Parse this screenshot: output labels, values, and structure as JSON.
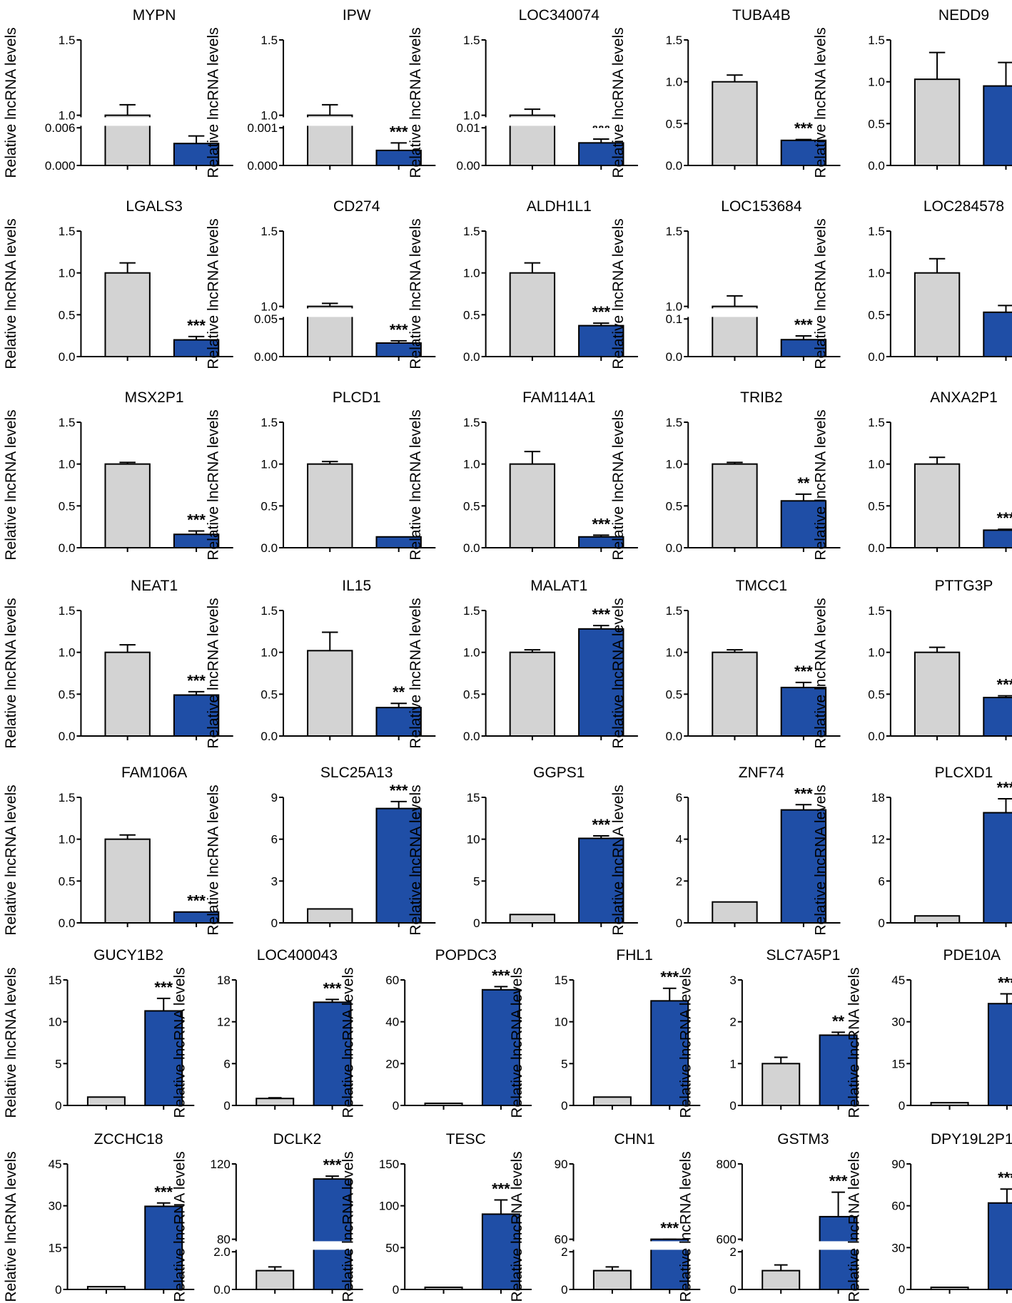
{
  "figure": {
    "ylabel": "Relative lncRNA levels",
    "colors": {
      "control": "#d3d3d3",
      "treated": "#1f4ea6"
    },
    "panels_per_row": [
      5,
      5,
      5,
      5,
      5,
      6,
      6
    ]
  },
  "chart_data": [
    {
      "type": "bar",
      "title": "MYPN",
      "ylabel": "Relative lncRNA levels",
      "ylim": [
        0,
        1.5
      ],
      "yticks": [
        "0.000",
        "0.006",
        "1.0",
        "1.5"
      ],
      "axis_break": true,
      "values": [
        1.0,
        0.0035
      ],
      "errors": [
        0.07,
        0.0012
      ],
      "significance": [
        "",
        "***"
      ]
    },
    {
      "type": "bar",
      "title": "IPW",
      "ylabel": "Relative lncRNA levels",
      "ylim": [
        0,
        1.5
      ],
      "yticks": [
        "0.000",
        "0.001",
        "1.0",
        "1.5"
      ],
      "axis_break": true,
      "values": [
        1.0,
        0.0004
      ],
      "errors": [
        0.07,
        0.0002
      ],
      "significance": [
        "",
        "***"
      ]
    },
    {
      "type": "bar",
      "title": "LOC340074",
      "ylabel": "Relative lncRNA levels",
      "ylim": [
        0,
        1.5
      ],
      "yticks": [
        "0.00",
        "0.01",
        "1.0",
        "1.5"
      ],
      "axis_break": true,
      "values": [
        1.0,
        0.006
      ],
      "errors": [
        0.04,
        0.001
      ],
      "significance": [
        "",
        "***"
      ]
    },
    {
      "type": "bar",
      "title": "TUBA4B",
      "ylabel": "Relative lncRNA levels",
      "ylim": [
        0,
        1.5
      ],
      "yticks": [
        "0.0",
        "0.5",
        "1.0",
        "1.5"
      ],
      "values": [
        1.0,
        0.3
      ],
      "errors": [
        0.08,
        0.01
      ],
      "significance": [
        "",
        "***"
      ]
    },
    {
      "type": "bar",
      "title": "NEDD9",
      "ylabel": "Relative lncRNA levels",
      "ylim": [
        0,
        1.5
      ],
      "yticks": [
        "0.0",
        "0.5",
        "1.0",
        "1.5"
      ],
      "values": [
        1.03,
        0.95
      ],
      "errors": [
        0.32,
        0.28
      ],
      "significance": [
        "",
        ""
      ]
    },
    {
      "type": "bar",
      "title": "LGALS3",
      "ylabel": "Relative lncRNA levels",
      "ylim": [
        0,
        1.5
      ],
      "yticks": [
        "0.0",
        "0.5",
        "1.0",
        "1.5"
      ],
      "values": [
        1.0,
        0.2
      ],
      "errors": [
        0.12,
        0.04
      ],
      "significance": [
        "",
        "***"
      ]
    },
    {
      "type": "bar",
      "title": "CD274",
      "ylabel": "Relative lncRNA levels",
      "ylim": [
        0,
        1.5
      ],
      "yticks": [
        "0.00",
        "0.05",
        "1.0",
        "1.5"
      ],
      "axis_break": true,
      "values": [
        1.0,
        0.018
      ],
      "errors": [
        0.02,
        0.003
      ],
      "significance": [
        "",
        "***"
      ]
    },
    {
      "type": "bar",
      "title": "ALDH1L1",
      "ylabel": "Relative lncRNA levels",
      "ylim": [
        0,
        1.5
      ],
      "yticks": [
        "0.0",
        "0.5",
        "1.0",
        "1.5"
      ],
      "values": [
        1.0,
        0.37
      ],
      "errors": [
        0.12,
        0.03
      ],
      "significance": [
        "",
        "***"
      ]
    },
    {
      "type": "bar",
      "title": "LOC153684",
      "ylabel": "Relative lncRNA levels",
      "ylim": [
        0,
        1.5
      ],
      "yticks": [
        "0.0",
        "0.1",
        "1.0",
        "1.5"
      ],
      "axis_break": true,
      "values": [
        1.0,
        0.045
      ],
      "errors": [
        0.07,
        0.01
      ],
      "significance": [
        "",
        "***"
      ]
    },
    {
      "type": "bar",
      "title": "LOC284578",
      "ylabel": "Relative lncRNA levels",
      "ylim": [
        0,
        1.5
      ],
      "yticks": [
        "0.0",
        "0.5",
        "1.0",
        "1.5"
      ],
      "values": [
        1.0,
        0.53
      ],
      "errors": [
        0.17,
        0.08
      ],
      "significance": [
        "",
        ""
      ]
    },
    {
      "type": "bar",
      "title": "MSX2P1",
      "ylabel": "Relative lncRNA levels",
      "ylim": [
        0,
        1.5
      ],
      "yticks": [
        "0.0",
        "0.5",
        "1.0",
        "1.5"
      ],
      "values": [
        1.0,
        0.16
      ],
      "errors": [
        0.02,
        0.04
      ],
      "significance": [
        "",
        "***"
      ]
    },
    {
      "type": "bar",
      "title": "PLCD1",
      "ylabel": "Relative lncRNA levels",
      "ylim": [
        0,
        1.5
      ],
      "yticks": [
        "0.0",
        "0.5",
        "1.0",
        "1.5"
      ],
      "values": [
        1.0,
        0.13
      ],
      "errors": [
        0.03,
        0.0
      ],
      "significance": [
        "",
        ""
      ]
    },
    {
      "type": "bar",
      "title": "FAM114A1",
      "ylabel": "Relative lncRNA levels",
      "ylim": [
        0,
        1.5
      ],
      "yticks": [
        "0.0",
        "0.5",
        "1.0",
        "1.5"
      ],
      "values": [
        1.0,
        0.13
      ],
      "errors": [
        0.15,
        0.02
      ],
      "significance": [
        "",
        "***"
      ]
    },
    {
      "type": "bar",
      "title": "TRIB2",
      "ylabel": "Relative lncRNA levels",
      "ylim": [
        0,
        1.5
      ],
      "yticks": [
        "0.0",
        "0.5",
        "1.0",
        "1.5"
      ],
      "values": [
        1.0,
        0.56
      ],
      "errors": [
        0.02,
        0.08
      ],
      "significance": [
        "",
        "**"
      ]
    },
    {
      "type": "bar",
      "title": "ANXA2P1",
      "ylabel": "Relative lncRNA levels",
      "ylim": [
        0,
        1.5
      ],
      "yticks": [
        "0.0",
        "0.5",
        "1.0",
        "1.5"
      ],
      "values": [
        1.0,
        0.21
      ],
      "errors": [
        0.08,
        0.01
      ],
      "significance": [
        "",
        "***"
      ]
    },
    {
      "type": "bar",
      "title": "NEAT1",
      "ylabel": "Relative lncRNA levels",
      "ylim": [
        0,
        1.5
      ],
      "yticks": [
        "0.0",
        "0.5",
        "1.0",
        "1.5"
      ],
      "values": [
        1.0,
        0.49
      ],
      "errors": [
        0.09,
        0.04
      ],
      "significance": [
        "",
        "***"
      ]
    },
    {
      "type": "bar",
      "title": "IL15",
      "ylabel": "Relative lncRNA levels",
      "ylim": [
        0,
        1.5
      ],
      "yticks": [
        "0.0",
        "0.5",
        "1.0",
        "1.5"
      ],
      "values": [
        1.02,
        0.34
      ],
      "errors": [
        0.22,
        0.05
      ],
      "significance": [
        "",
        "**"
      ]
    },
    {
      "type": "bar",
      "title": "MALAT1",
      "ylabel": "Relative lncRNA levels",
      "ylim": [
        0,
        1.5
      ],
      "yticks": [
        "0.0",
        "0.5",
        "1.0",
        "1.5"
      ],
      "values": [
        1.0,
        1.28
      ],
      "errors": [
        0.03,
        0.04
      ],
      "significance": [
        "",
        "***"
      ]
    },
    {
      "type": "bar",
      "title": "TMCC1",
      "ylabel": "Relative lncRNA levels",
      "ylim": [
        0,
        1.5
      ],
      "yticks": [
        "0.0",
        "0.5",
        "1.0",
        "1.5"
      ],
      "values": [
        1.0,
        0.58
      ],
      "errors": [
        0.03,
        0.06
      ],
      "significance": [
        "",
        "***"
      ]
    },
    {
      "type": "bar",
      "title": "PTTG3P",
      "ylabel": "Relative lncRNA levels",
      "ylim": [
        0,
        1.5
      ],
      "yticks": [
        "0.0",
        "0.5",
        "1.0",
        "1.5"
      ],
      "values": [
        1.0,
        0.46
      ],
      "errors": [
        0.06,
        0.02
      ],
      "significance": [
        "",
        "***"
      ]
    },
    {
      "type": "bar",
      "title": "FAM106A",
      "ylabel": "Relative lncRNA levels",
      "ylim": [
        0,
        1.5
      ],
      "yticks": [
        "0.0",
        "0.5",
        "1.0",
        "1.5"
      ],
      "values": [
        1.0,
        0.13
      ],
      "errors": [
        0.05,
        0.0
      ],
      "significance": [
        "",
        "***"
      ]
    },
    {
      "type": "bar",
      "title": "SLC25A13",
      "ylabel": "Relative lncRNA levels",
      "ylim": [
        0,
        9
      ],
      "yticks": [
        "0",
        "3",
        "6",
        "9"
      ],
      "values": [
        1.0,
        8.2
      ],
      "errors": [
        0.0,
        0.5
      ],
      "significance": [
        "",
        "***"
      ]
    },
    {
      "type": "bar",
      "title": "GGPS1",
      "ylabel": "Relative lncRNA levels",
      "ylim": [
        0,
        15
      ],
      "yticks": [
        "0",
        "5",
        "10",
        "15"
      ],
      "values": [
        1.0,
        10.1
      ],
      "errors": [
        0.0,
        0.3
      ],
      "significance": [
        "",
        "***"
      ]
    },
    {
      "type": "bar",
      "title": "ZNF74",
      "ylabel": "Relative lncRNA levels",
      "ylim": [
        0,
        6
      ],
      "yticks": [
        "0",
        "2",
        "4",
        "6"
      ],
      "values": [
        1.0,
        5.4
      ],
      "errors": [
        0.0,
        0.25
      ],
      "significance": [
        "",
        "***"
      ]
    },
    {
      "type": "bar",
      "title": "PLCXD1",
      "ylabel": "Relative lncRNA levels",
      "ylim": [
        0,
        18
      ],
      "yticks": [
        "0",
        "6",
        "12",
        "18"
      ],
      "values": [
        1.0,
        15.8
      ],
      "errors": [
        0.0,
        2.0
      ],
      "significance": [
        "",
        "***"
      ]
    },
    {
      "type": "bar",
      "title": "GUCY1B2",
      "ylabel": "Relative lncRNA levels",
      "ylim": [
        0,
        15
      ],
      "yticks": [
        "0",
        "5",
        "10",
        "15"
      ],
      "values": [
        1.0,
        11.3
      ],
      "errors": [
        0.0,
        1.5
      ],
      "significance": [
        "",
        "***"
      ]
    },
    {
      "type": "bar",
      "title": "LOC400043",
      "ylabel": "Relative lncRNA levels",
      "ylim": [
        0,
        18
      ],
      "yticks": [
        "0",
        "6",
        "12",
        "18"
      ],
      "values": [
        1.0,
        14.8
      ],
      "errors": [
        0.1,
        0.4
      ],
      "significance": [
        "",
        "***"
      ]
    },
    {
      "type": "bar",
      "title": "POPDC3",
      "ylabel": "Relative lncRNA levels",
      "ylim": [
        0,
        60
      ],
      "yticks": [
        "0",
        "20",
        "40",
        "60"
      ],
      "values": [
        1.0,
        55.3
      ],
      "errors": [
        0.0,
        1.5
      ],
      "significance": [
        "",
        "***"
      ]
    },
    {
      "type": "bar",
      "title": "FHL1",
      "ylabel": "Relative lncRNA levels",
      "ylim": [
        0,
        15
      ],
      "yticks": [
        "0",
        "5",
        "10",
        "15"
      ],
      "values": [
        1.0,
        12.5
      ],
      "errors": [
        0.0,
        1.5
      ],
      "significance": [
        "",
        "***"
      ]
    },
    {
      "type": "bar",
      "title": "SLC7A5P1",
      "ylabel": "Relative lncRNA levels",
      "ylim": [
        0,
        3
      ],
      "yticks": [
        "0",
        "1",
        "2",
        "3"
      ],
      "values": [
        1.0,
        1.68
      ],
      "errors": [
        0.15,
        0.07
      ],
      "significance": [
        "",
        "**"
      ]
    },
    {
      "type": "bar",
      "title": "PDE10A",
      "ylabel": "Relative lncRNA levels",
      "ylim": [
        0,
        45
      ],
      "yticks": [
        "0",
        "15",
        "30",
        "45"
      ],
      "values": [
        1.0,
        36.5
      ],
      "errors": [
        0.0,
        3.5
      ],
      "significance": [
        "",
        "***"
      ]
    },
    {
      "type": "bar",
      "title": "ZCCHC18",
      "ylabel": "Relative lncRNA levels",
      "ylim": [
        0,
        45
      ],
      "yticks": [
        "0",
        "15",
        "30",
        "45"
      ],
      "values": [
        1.0,
        29.8
      ],
      "errors": [
        0.0,
        1.2
      ],
      "significance": [
        "",
        "***"
      ]
    },
    {
      "type": "bar",
      "title": "DCLK2",
      "ylabel": "Relative lncRNA levels",
      "ylim": [
        0,
        120
      ],
      "yticks": [
        "0.0",
        "2.0",
        "80",
        "120"
      ],
      "axis_break": true,
      "values": [
        1.0,
        112
      ],
      "errors": [
        0.2,
        1.5
      ],
      "significance": [
        "",
        "***"
      ]
    },
    {
      "type": "bar",
      "title": "TESC",
      "ylabel": "Relative lncRNA levels",
      "ylim": [
        0,
        150
      ],
      "yticks": [
        "0",
        "50",
        "100",
        "150"
      ],
      "values": [
        1.0,
        90
      ],
      "errors": [
        0.0,
        17
      ],
      "significance": [
        "",
        "***"
      ]
    },
    {
      "type": "bar",
      "title": "CHN1",
      "ylabel": "Relative lncRNA levels",
      "ylim": [
        0,
        90
      ],
      "yticks": [
        "0",
        "2",
        "60",
        "90"
      ],
      "axis_break": true,
      "values": [
        1.0,
        56
      ],
      "errors": [
        0.2,
        1.5
      ],
      "significance": [
        "",
        "***"
      ]
    },
    {
      "type": "bar",
      "title": "GSTM3",
      "ylabel": "Relative lncRNA levels",
      "ylim": [
        0,
        800
      ],
      "yticks": [
        "0",
        "2",
        "600",
        "800"
      ],
      "axis_break": true,
      "values": [
        1.0,
        660
      ],
      "errors": [
        0.3,
        65
      ],
      "significance": [
        "",
        "***"
      ]
    },
    {
      "type": "bar",
      "title": "DPY19L2P1",
      "ylabel": "Relative lncRNA levels",
      "ylim": [
        0,
        90
      ],
      "yticks": [
        "0",
        "30",
        "60",
        "90"
      ],
      "values": [
        1.0,
        62
      ],
      "errors": [
        0.0,
        10
      ],
      "significance": [
        "",
        "***"
      ]
    }
  ]
}
